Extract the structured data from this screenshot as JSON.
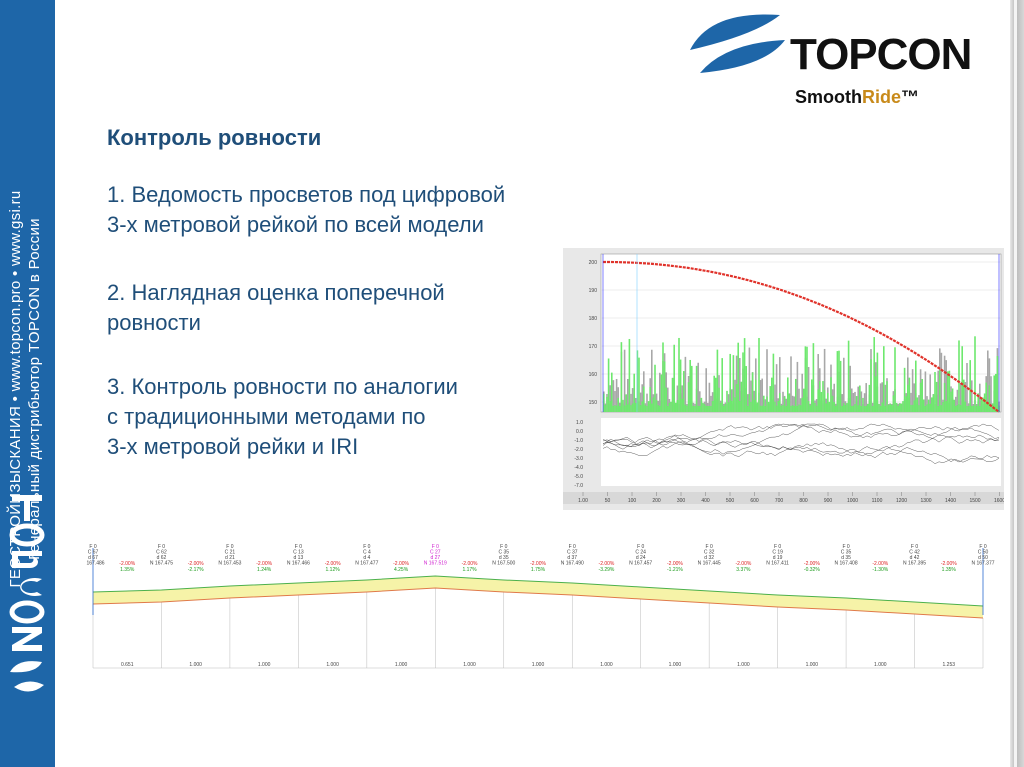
{
  "sidebar": {
    "line1": "ГЕОСТРОЙИЗЫСКАНИЯ • www.topcon.pro • www.gsi.ru",
    "line2": "Генеральный дистрибьютор TOPCON в России",
    "logo_text": "TOPCON"
  },
  "header": {
    "brand": "TOPCON",
    "product_a": "Smooth",
    "product_b": "Ride",
    "product_c": "™"
  },
  "content": {
    "heading": "Контроль ровности",
    "p1_line1": "1.  Ведомость просветов под цифровой",
    "p1_line2": "3-х метровой рейкой по всей модели",
    "p2_line1": "2. Наглядная оценка поперечной",
    "p2_line2": "ровности",
    "p3_line1": "3. Контроль ровности по аналогии",
    "p3_line2": "с традиционными методами по",
    "p3_line3": "3-х метровой рейки и IRI"
  },
  "colors": {
    "brand_blue": "#1e66a8",
    "heading_blue": "#1f4e79",
    "accent_gold": "#c88a1a",
    "profile_red": "#e0322a",
    "bar_green": "#6ee86e",
    "bar_gray": "#a8a8a8"
  },
  "profile_chart": {
    "y_ticks": [
      "200",
      "190",
      "180",
      "170",
      "160",
      "150"
    ],
    "lower_y_ticks": [
      "1.0",
      "0.0",
      "-1.0",
      "-2.0",
      "-3.0",
      "-4.0",
      "-5.0",
      "-7.0"
    ],
    "x_ticks": [
      "1.00",
      "50",
      "100",
      "200",
      "300",
      "400",
      "500",
      "600",
      "700",
      "800",
      "900",
      "1000",
      "1100",
      "1200",
      "1300",
      "1400",
      "1500",
      "1600"
    ]
  },
  "section_chart": {
    "station_labels": [
      "F 0",
      "F 0",
      "F 0",
      "F 0",
      "F 0",
      "F 0",
      "F 0",
      "F 0",
      "F 0",
      "F 0",
      "F 0",
      "F 0",
      "F 0",
      "F 0"
    ],
    "codes": [
      "C 67",
      "C 62",
      "C 21",
      "C 13",
      "C 4",
      "C 27",
      "C 35",
      "C 37",
      "C 24",
      "C 32",
      "C 19",
      "C 35",
      "C 42",
      "C 50"
    ],
    "d_values": [
      "d 67",
      "d 62",
      "d 21",
      "d 13",
      "d 4",
      "d 27",
      "d 35",
      "d 37",
      "d 24",
      "d 32",
      "d 19",
      "d 35",
      "d 42",
      "d 50"
    ],
    "northings": [
      "N 167.486",
      "N 167.475",
      "N 167.453",
      "N 167.466",
      "N 167.477",
      "N 167.519",
      "N 167.500",
      "N 167.490",
      "N 167.457",
      "N 167.445",
      "N 167.411",
      "N 167.408",
      "N 167.395",
      "N 167.377"
    ],
    "slopes_red": [
      "-2.00%",
      "-2.00%",
      "-2.00%",
      "-2.00%",
      "-2.00%",
      "-2.00%",
      "-2.00%",
      "-2.00%",
      "-2.00%",
      "-2.00%",
      "-2.00%",
      "-2.00%",
      "-2.00%"
    ],
    "slopes_green": [
      "1.35%",
      "-2.17%",
      "1.24%",
      "1.12%",
      "4.25%",
      "1.17%",
      "1.75%",
      "-3.29%",
      "-1.21%",
      "3.37%",
      "-0.32%",
      "-1.30%",
      "1.35%"
    ],
    "distances": [
      "0.651",
      "1.000",
      "1.000",
      "1.000",
      "1.000",
      "1.000",
      "1.000",
      "1.000",
      "1.000",
      "1.000",
      "1.000",
      "1.000",
      "1.253"
    ]
  }
}
